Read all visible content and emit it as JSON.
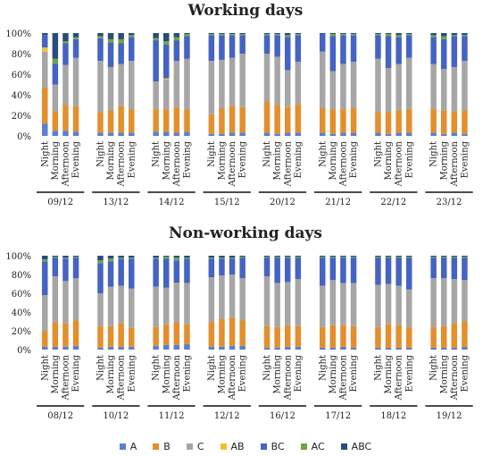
{
  "colors": {
    "A": "#5b7fd1",
    "B": "#e38f2d",
    "C": "#a6a6a6",
    "AB": "#f2c12e",
    "BC": "#4563c2",
    "AC": "#6fa543",
    "ABC": "#2a4d7a"
  },
  "chart_data": [
    {
      "type": "bar",
      "stacked": true,
      "title": "Working days",
      "ylim": [
        0,
        100
      ],
      "y_ticks": [
        "0%",
        "20%",
        "40%",
        "60%",
        "80%",
        "100%"
      ],
      "periods": [
        "Night",
        "Morning",
        "Afternoon",
        "Evening"
      ],
      "groups": [
        "09/12",
        "13/12",
        "14/12",
        "15/12",
        "20/12",
        "21/12",
        "22/12",
        "23/12"
      ],
      "series_order": [
        "A",
        "B",
        "C",
        "AB",
        "BC",
        "AC",
        "ABC"
      ],
      "bars": [
        [
          [
            12,
            35,
            35,
            4,
            12,
            0,
            2
          ],
          [
            5,
            19,
            26,
            0,
            20,
            5,
            25
          ],
          [
            5,
            25,
            39,
            0,
            21,
            2,
            8
          ],
          [
            4,
            25,
            47,
            0,
            18,
            2,
            4
          ]
        ],
        [
          [
            3,
            20,
            50,
            0,
            22,
            2,
            3
          ],
          [
            3,
            22,
            42,
            0,
            24,
            3,
            6
          ],
          [
            3,
            26,
            41,
            0,
            20,
            4,
            6
          ],
          [
            3,
            23,
            47,
            0,
            23,
            2,
            2
          ]
        ],
        [
          [
            4,
            22,
            27,
            0,
            40,
            2,
            5
          ],
          [
            4,
            22,
            29,
            1,
            33,
            3,
            8
          ],
          [
            3,
            25,
            45,
            0,
            20,
            3,
            4
          ],
          [
            4,
            22,
            49,
            0,
            22,
            2,
            1
          ]
        ],
        [
          [
            2,
            19,
            52,
            0,
            25,
            1,
            1
          ],
          [
            2,
            25,
            47,
            0,
            24,
            1,
            1
          ],
          [
            3,
            26,
            47,
            0,
            22,
            1,
            1
          ],
          [
            3,
            25,
            52,
            0,
            18,
            1,
            1
          ]
        ],
        [
          [
            3,
            30,
            47,
            0,
            18,
            1,
            1
          ],
          [
            2,
            28,
            47,
            0,
            21,
            1,
            1
          ],
          [
            3,
            25,
            36,
            0,
            32,
            2,
            2
          ],
          [
            3,
            28,
            41,
            0,
            26,
            1,
            1
          ]
        ],
        [
          [
            3,
            24,
            55,
            0,
            17,
            0,
            1
          ],
          [
            2,
            24,
            37,
            0,
            34,
            2,
            1
          ],
          [
            3,
            23,
            44,
            0,
            28,
            1,
            1
          ],
          [
            3,
            24,
            45,
            0,
            26,
            1,
            1
          ]
        ],
        [
          [
            3,
            20,
            52,
            0,
            23,
            1,
            1
          ],
          [
            2,
            21,
            43,
            0,
            31,
            2,
            1
          ],
          [
            3,
            22,
            45,
            0,
            26,
            2,
            2
          ],
          [
            3,
            23,
            50,
            0,
            22,
            1,
            1
          ]
        ],
        [
          [
            3,
            23,
            44,
            0,
            26,
            2,
            2
          ],
          [
            2,
            23,
            40,
            0,
            29,
            3,
            3
          ],
          [
            3,
            21,
            43,
            0,
            30,
            1,
            2
          ],
          [
            2,
            23,
            48,
            0,
            24,
            1,
            2
          ]
        ]
      ]
    },
    {
      "type": "bar",
      "stacked": true,
      "title": "Non-working days",
      "ylim": [
        0,
        100
      ],
      "y_ticks": [
        "0%",
        "20%",
        "40%",
        "60%",
        "80%",
        "100%"
      ],
      "periods": [
        "Night",
        "Morning",
        "Afternoon",
        "Evening"
      ],
      "groups": [
        "08/12",
        "10/12",
        "11/12",
        "12/12",
        "16/12",
        "17/12",
        "18/12",
        "19/12"
      ],
      "series_order": [
        "A",
        "B",
        "C",
        "AB",
        "BC",
        "AC",
        "ABC"
      ],
      "bars": [
        [
          [
            3,
            17,
            38,
            0,
            36,
            2,
            4
          ],
          [
            3,
            26,
            49,
            0,
            20,
            1,
            1
          ],
          [
            3,
            25,
            45,
            0,
            24,
            1,
            2
          ],
          [
            4,
            27,
            45,
            0,
            22,
            1,
            1
          ]
        ],
        [
          [
            2,
            23,
            35,
            0,
            32,
            3,
            5
          ],
          [
            3,
            22,
            42,
            0,
            27,
            3,
            3
          ],
          [
            3,
            25,
            40,
            0,
            29,
            1,
            2
          ],
          [
            3,
            20,
            42,
            0,
            32,
            1,
            2
          ]
        ],
        [
          [
            4,
            20,
            43,
            0,
            30,
            1,
            2
          ],
          [
            5,
            22,
            39,
            0,
            31,
            2,
            1
          ],
          [
            5,
            24,
            41,
            1,
            24,
            3,
            2
          ],
          [
            6,
            21,
            44,
            0,
            26,
            1,
            2
          ]
        ],
        [
          [
            3,
            26,
            48,
            0,
            20,
            1,
            2
          ],
          [
            3,
            30,
            46,
            0,
            18,
            1,
            2
          ],
          [
            4,
            30,
            46,
            0,
            17,
            1,
            2
          ],
          [
            4,
            27,
            45,
            0,
            22,
            1,
            1
          ]
        ],
        [
          [
            2,
            23,
            53,
            0,
            20,
            1,
            1
          ],
          [
            2,
            22,
            47,
            0,
            27,
            1,
            1
          ],
          [
            3,
            23,
            46,
            0,
            26,
            1,
            1
          ],
          [
            3,
            22,
            50,
            0,
            23,
            1,
            1
          ]
        ],
        [
          [
            2,
            22,
            44,
            0,
            30,
            1,
            1
          ],
          [
            2,
            24,
            48,
            0,
            24,
            1,
            1
          ],
          [
            3,
            23,
            45,
            0,
            27,
            1,
            1
          ],
          [
            2,
            23,
            46,
            0,
            27,
            1,
            1
          ]
        ],
        [
          [
            2,
            22,
            45,
            0,
            29,
            1,
            1
          ],
          [
            2,
            25,
            43,
            0,
            28,
            1,
            1
          ],
          [
            2,
            24,
            42,
            0,
            30,
            1,
            1
          ],
          [
            2,
            22,
            40,
            0,
            34,
            1,
            1
          ]
        ],
        [
          [
            2,
            22,
            52,
            0,
            22,
            1,
            1
          ],
          [
            2,
            23,
            51,
            0,
            22,
            1,
            1
          ],
          [
            2,
            26,
            47,
            0,
            23,
            1,
            1
          ],
          [
            3,
            27,
            44,
            0,
            24,
            1,
            1
          ]
        ]
      ]
    }
  ],
  "legend": [
    {
      "key": "A",
      "label": "A"
    },
    {
      "key": "B",
      "label": "B"
    },
    {
      "key": "C",
      "label": "C"
    },
    {
      "key": "AB",
      "label": "AB"
    },
    {
      "key": "BC",
      "label": "BC"
    },
    {
      "key": "AC",
      "label": "AC"
    },
    {
      "key": "ABC",
      "label": "ABC"
    }
  ]
}
